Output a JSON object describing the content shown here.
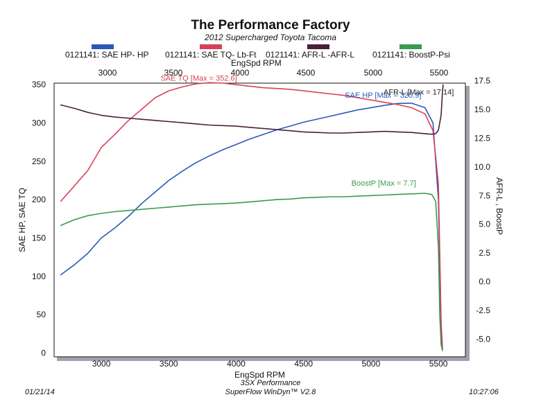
{
  "header": {
    "title": "The Performance Factory",
    "subtitle": "2012 Supercharged Toyota Tacoma"
  },
  "legend": [
    {
      "label": "0121141: SAE HP-  HP",
      "color": "#2a58b8"
    },
    {
      "label": "0121141: SAE TQ- Lb-Ft",
      "color": "#d84058"
    },
    {
      "label": "0121141: AFR-L -AFR-L",
      "color": "#4a1f3a"
    },
    {
      "label": "0121141: BoostP-Psi",
      "color": "#3a9a4a"
    }
  ],
  "top_axis": {
    "label": "EngSpd  RPM",
    "ticks": [
      "3000",
      "3500",
      "4000",
      "4500",
      "5000",
      "5500"
    ]
  },
  "footer": {
    "date": "01/21/14",
    "company": "3SX Performance",
    "software": "SuperFlow WinDyn™  V2.8",
    "time": "10:27:06"
  },
  "chart_data": {
    "type": "line",
    "xlabel": "EngSpd  RPM",
    "ylabel": "SAE HP, SAE TQ",
    "y2label": "AFR-L , BoostP",
    "xlim": [
      2650,
      5700
    ],
    "ylim": [
      -5,
      352
    ],
    "y2lim": [
      -6.55,
      17.3
    ],
    "xticks": [
      3000,
      3500,
      4000,
      4500,
      5000,
      5500
    ],
    "yticks": [
      0,
      50,
      100,
      150,
      200,
      250,
      300,
      350
    ],
    "y2ticks": [
      -5.0,
      -2.5,
      0.0,
      2.5,
      5.0,
      7.5,
      10.0,
      12.5,
      15.0,
      17.5
    ],
    "grid": false,
    "series": [
      {
        "name": "SAE HP",
        "axis": "left",
        "color": "#2a58b8",
        "annotation": "SAE HP [Max = 325.9]",
        "x": [
          2700,
          2800,
          2900,
          3000,
          3100,
          3200,
          3300,
          3400,
          3500,
          3600,
          3700,
          3800,
          3900,
          4000,
          4100,
          4200,
          4300,
          4400,
          4500,
          4600,
          4700,
          4800,
          4900,
          5000,
          5100,
          5200,
          5300,
          5400,
          5460,
          5500,
          5520,
          5530
        ],
        "y": [
          102,
          115,
          130,
          150,
          163,
          178,
          195,
          210,
          225,
          237,
          248,
          257,
          265,
          272,
          279,
          285,
          291,
          296,
          301,
          305,
          309,
          313,
          317,
          320,
          323,
          325.5,
          325.9,
          320,
          300,
          200,
          30,
          5
        ]
      },
      {
        "name": "SAE TQ",
        "axis": "left",
        "color": "#d84058",
        "annotation": "SAE TQ [Max = 352.6]",
        "x": [
          2700,
          2800,
          2900,
          3000,
          3100,
          3200,
          3300,
          3400,
          3500,
          3600,
          3700,
          3800,
          3900,
          4000,
          4100,
          4200,
          4300,
          4400,
          4500,
          4600,
          4700,
          4800,
          4900,
          5000,
          5100,
          5200,
          5300,
          5400,
          5460,
          5500,
          5520,
          5530
        ],
        "y": [
          198,
          218,
          238,
          268,
          285,
          303,
          318,
          333,
          342,
          347,
          351,
          352.6,
          352,
          350,
          348,
          346,
          345,
          344,
          342,
          340,
          338,
          336,
          333,
          330,
          327,
          324,
          320,
          312,
          290,
          220,
          40,
          8
        ]
      },
      {
        "name": "AFR-L",
        "axis": "right",
        "color": "#4a1f3a",
        "annotation": "AFR-L  [Max = 17.14]",
        "x": [
          2700,
          2800,
          2900,
          3000,
          3100,
          3200,
          3300,
          3400,
          3500,
          3600,
          3700,
          3800,
          3900,
          4000,
          4100,
          4200,
          4300,
          4400,
          4500,
          4600,
          4700,
          4800,
          4900,
          5000,
          5100,
          5200,
          5300,
          5400,
          5450,
          5480,
          5500,
          5520,
          5530,
          5535
        ],
        "y": [
          15.4,
          15.1,
          14.75,
          14.5,
          14.35,
          14.25,
          14.15,
          14.05,
          13.95,
          13.85,
          13.75,
          13.65,
          13.6,
          13.55,
          13.45,
          13.35,
          13.25,
          13.15,
          13.05,
          13.0,
          12.95,
          12.95,
          13.0,
          13.05,
          13.1,
          13.05,
          13.0,
          12.9,
          12.85,
          12.9,
          13.2,
          14.5,
          16.5,
          17.14
        ]
      },
      {
        "name": "BoostP",
        "axis": "right",
        "color": "#3a9a4a",
        "annotation": "BoostP [Max = 7.7]",
        "x": [
          2700,
          2800,
          2900,
          3000,
          3100,
          3200,
          3300,
          3400,
          3500,
          3600,
          3700,
          3800,
          3900,
          4000,
          4100,
          4200,
          4300,
          4400,
          4500,
          4600,
          4700,
          4800,
          4900,
          5000,
          5100,
          5200,
          5300,
          5400,
          5450,
          5480,
          5500,
          5510,
          5520,
          5530
        ],
        "y": [
          4.9,
          5.4,
          5.75,
          5.95,
          6.1,
          6.2,
          6.3,
          6.4,
          6.5,
          6.6,
          6.7,
          6.75,
          6.8,
          6.85,
          6.95,
          7.05,
          7.15,
          7.2,
          7.3,
          7.35,
          7.4,
          7.4,
          7.45,
          7.5,
          7.55,
          7.6,
          7.65,
          7.7,
          7.6,
          7.0,
          3.0,
          -3.0,
          -5.5,
          -6.0
        ]
      }
    ]
  }
}
